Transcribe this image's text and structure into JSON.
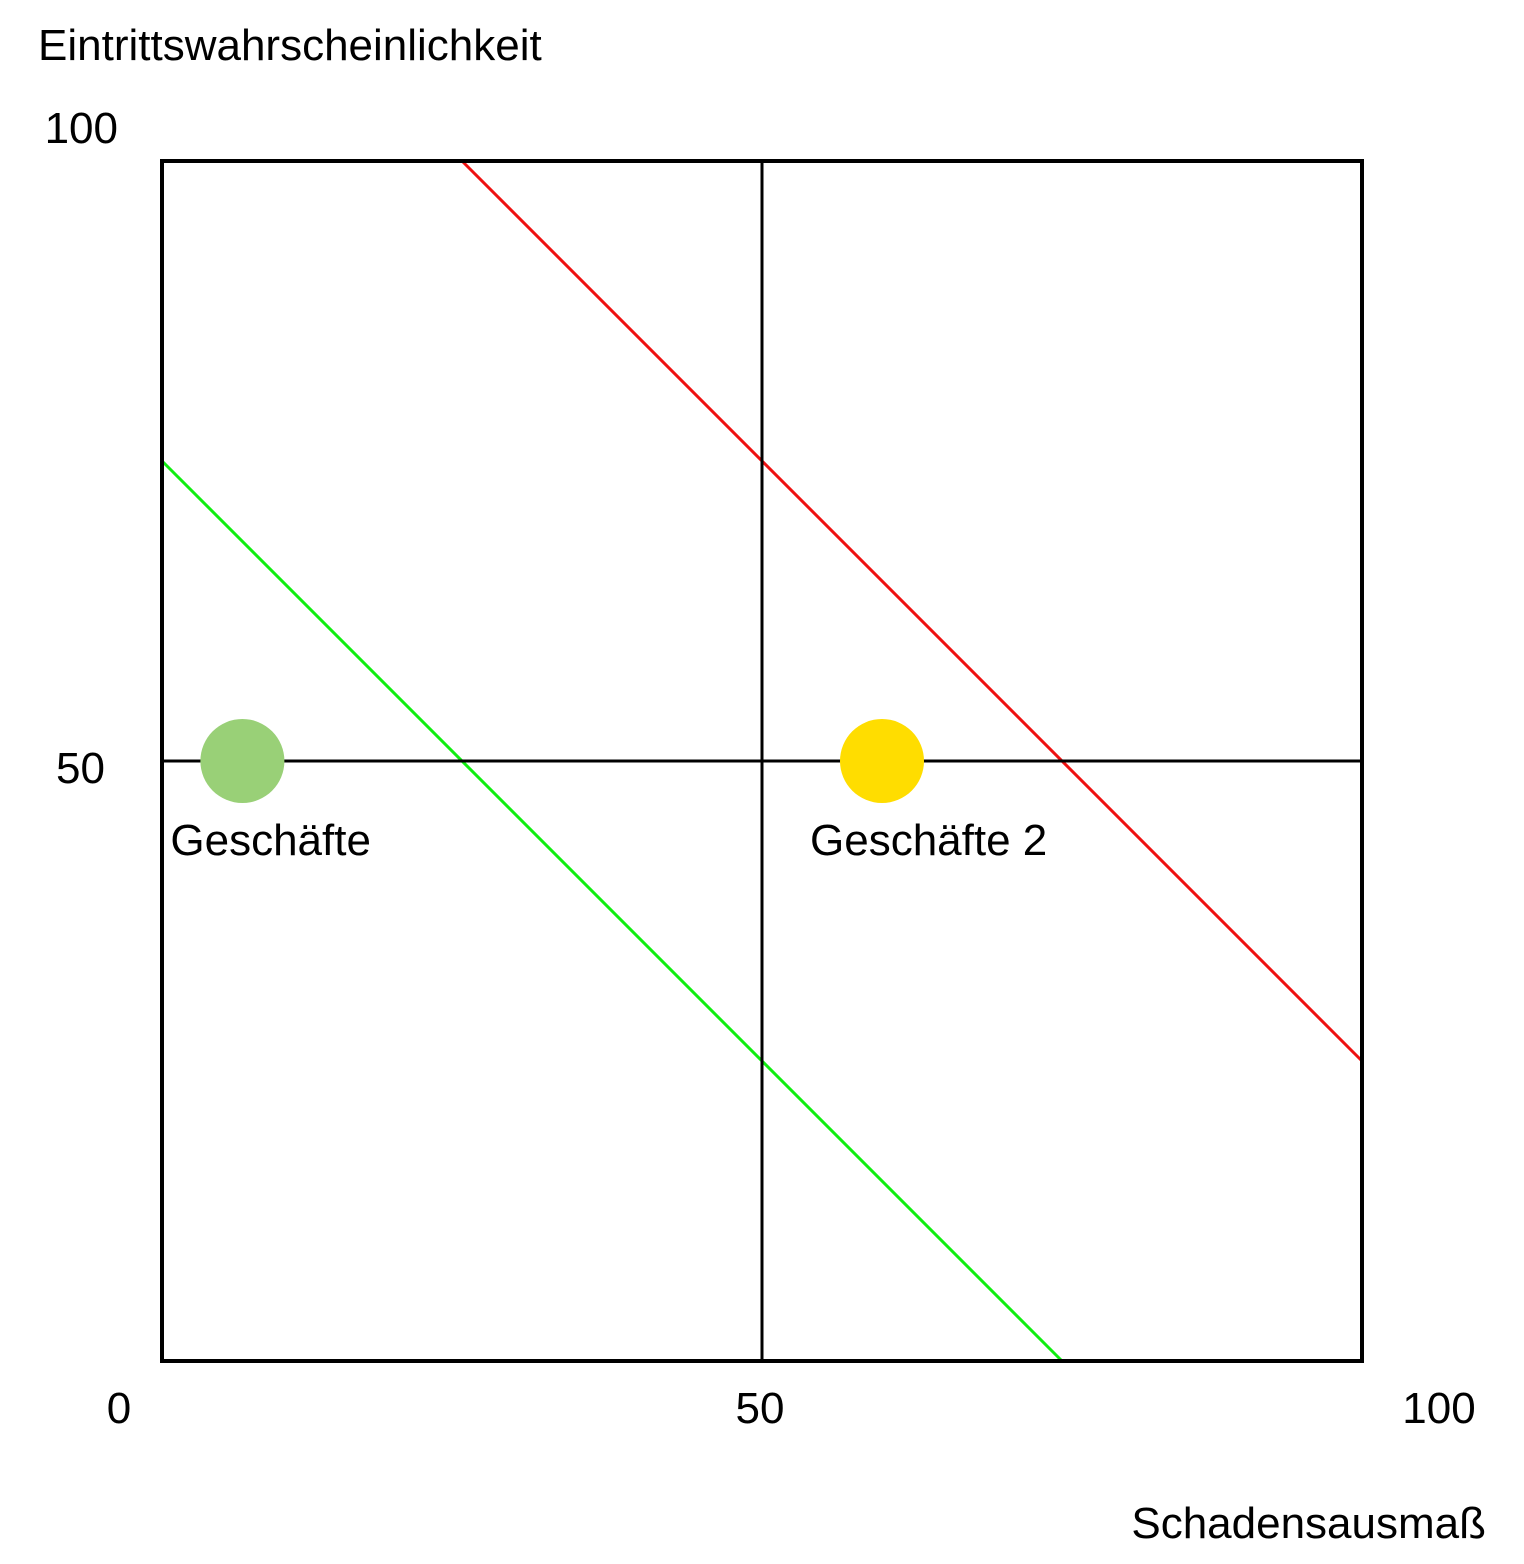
{
  "chart_data": {
    "type": "scatter",
    "title": "",
    "xlabel": "Schadensausmaß",
    "ylabel": "Eintrittswahrscheinlichkeit",
    "xlim": [
      0,
      100
    ],
    "ylim": [
      0,
      100
    ],
    "x_ticks": [
      "0",
      "50",
      "100"
    ],
    "y_ticks": [
      "50",
      "100"
    ],
    "grid": true,
    "points": [
      {
        "label": "Geschäfte",
        "x": 6.7,
        "y": 50,
        "color": "#99d077"
      },
      {
        "label": "Geschäfte 2",
        "x": 60,
        "y": 50,
        "color": "#ffdd00"
      }
    ],
    "lines": [
      {
        "color": "#ee1111",
        "points": [
          [
            25,
            100
          ],
          [
            100,
            25
          ]
        ]
      },
      {
        "color": "#11ee11",
        "points": [
          [
            0,
            75
          ],
          [
            75,
            0
          ]
        ]
      }
    ]
  }
}
